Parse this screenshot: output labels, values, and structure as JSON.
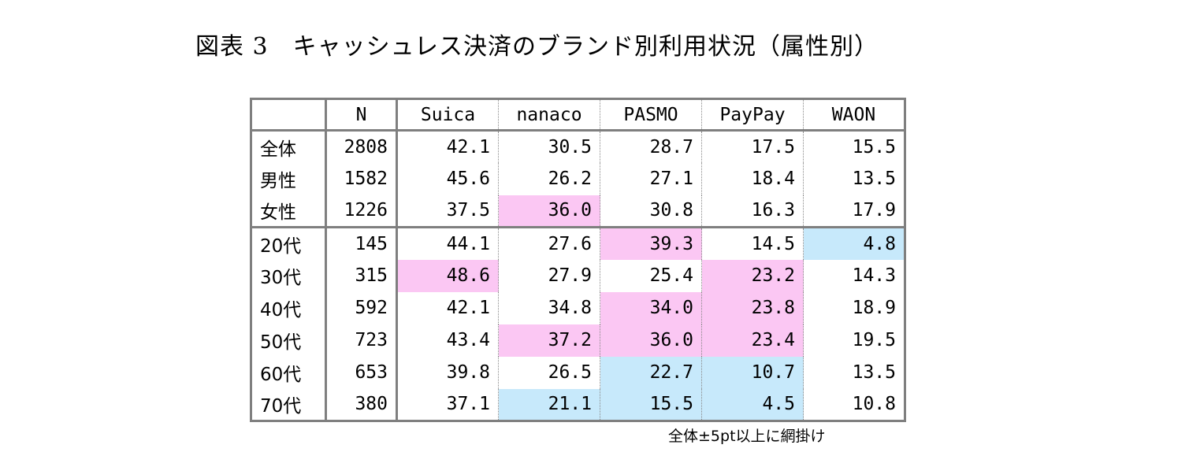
{
  "title": "図表 3　キャッシュレス決済のブランド別利用状況（属性別）",
  "table": {
    "headers": [
      "",
      "N",
      "Suica",
      "nanaco",
      "PASMO",
      "PayPay",
      "WAON"
    ],
    "rows": [
      {
        "label": "全体",
        "n": "2808",
        "values": [
          "42.1",
          "30.5",
          "28.7",
          "17.5",
          "15.5"
        ],
        "highlights": [
          "",
          "",
          "",
          "",
          ""
        ]
      },
      {
        "label": "男性",
        "n": "1582",
        "values": [
          "45.6",
          "26.2",
          "27.1",
          "18.4",
          "13.5"
        ],
        "highlights": [
          "",
          "",
          "",
          "",
          ""
        ]
      },
      {
        "label": "女性",
        "n": "1226",
        "values": [
          "37.5",
          "36.0",
          "30.8",
          "16.3",
          "17.9"
        ],
        "highlights": [
          "",
          "pink",
          "",
          "",
          ""
        ]
      },
      {
        "label": "20代",
        "n": "145",
        "values": [
          "44.1",
          "27.6",
          "39.3",
          "14.5",
          "4.8"
        ],
        "highlights": [
          "",
          "",
          "pink",
          "",
          "blue"
        ]
      },
      {
        "label": "30代",
        "n": "315",
        "values": [
          "48.6",
          "27.9",
          "25.4",
          "23.2",
          "14.3"
        ],
        "highlights": [
          "pink",
          "",
          "",
          "pink",
          ""
        ]
      },
      {
        "label": "40代",
        "n": "592",
        "values": [
          "42.1",
          "34.8",
          "34.0",
          "23.8",
          "18.9"
        ],
        "highlights": [
          "",
          "",
          "pink",
          "pink",
          ""
        ]
      },
      {
        "label": "50代",
        "n": "723",
        "values": [
          "43.4",
          "37.2",
          "36.0",
          "23.4",
          "19.5"
        ],
        "highlights": [
          "",
          "pink",
          "pink",
          "pink",
          ""
        ]
      },
      {
        "label": "60代",
        "n": "653",
        "values": [
          "39.8",
          "26.5",
          "22.7",
          "10.7",
          "13.5"
        ],
        "highlights": [
          "",
          "",
          "blue",
          "blue",
          ""
        ]
      },
      {
        "label": "70代",
        "n": "380",
        "values": [
          "37.1",
          "21.1",
          "15.5",
          "4.5",
          "10.8"
        ],
        "highlights": [
          "",
          "blue",
          "blue",
          "blue",
          ""
        ]
      }
    ]
  },
  "footnote": "全体±5pt以上に網掛け",
  "colors": {
    "highlight_pink": "#fbc7f3",
    "highlight_blue": "#c7e9fb",
    "border": "#7f7f7f"
  }
}
